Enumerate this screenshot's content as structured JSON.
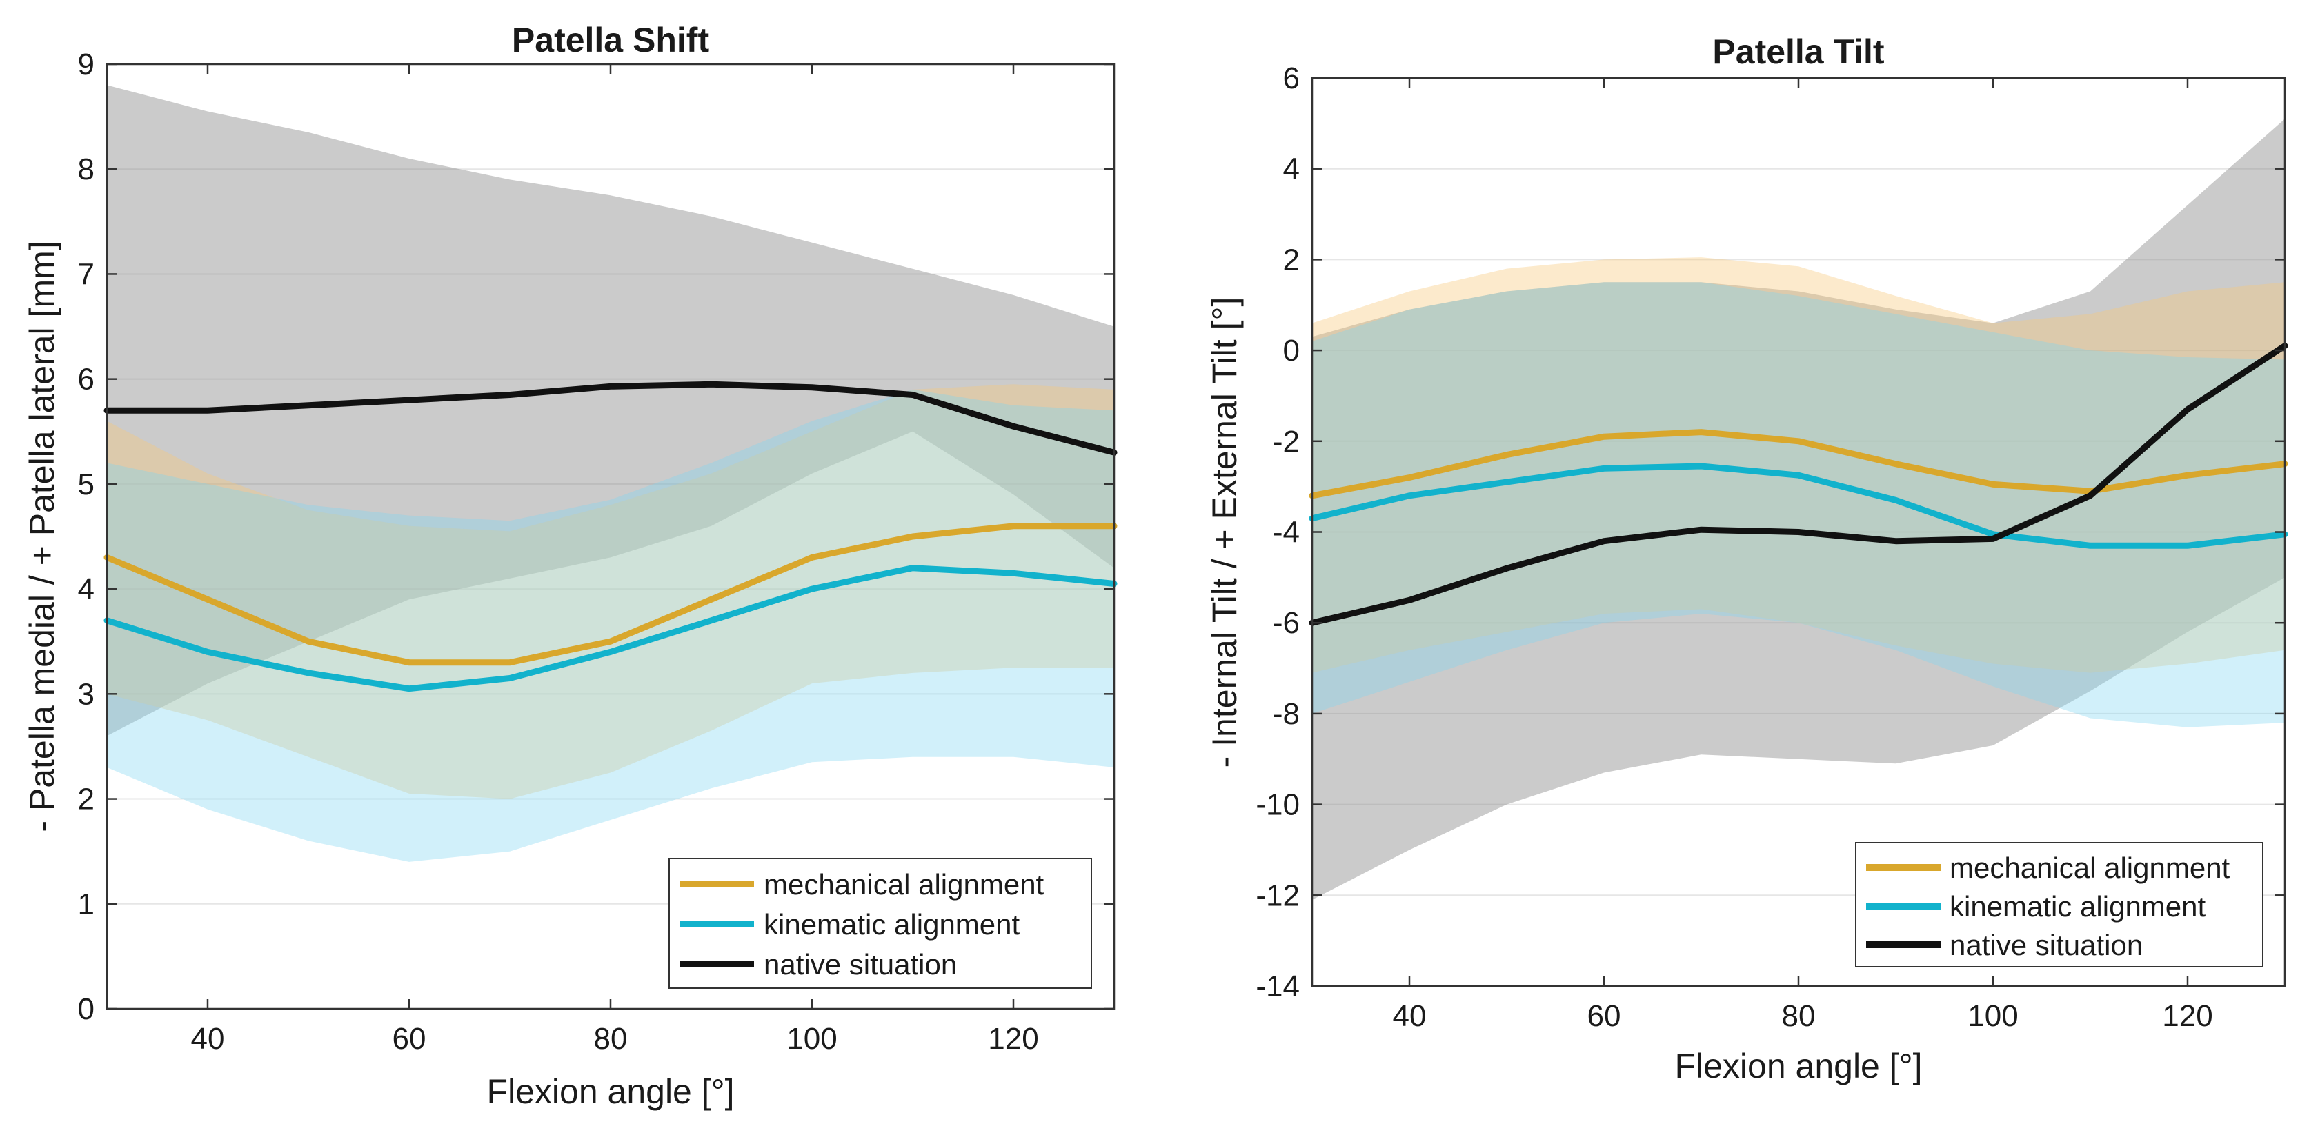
{
  "colors": {
    "mechanical": "#D9A72C",
    "mechanical_band": "#F6C87A",
    "kinematic": "#12B2CC",
    "kinematic_band": "#7FD6F0",
    "native": "#111111",
    "native_band": "#8C8C8C",
    "grid": "#E6E6E6",
    "axis": "#333333"
  },
  "legend": {
    "mechanical": "mechanical alignment",
    "kinematic": "kinematic alignment",
    "native": "native situation"
  },
  "chart_data": [
    {
      "type": "line",
      "title": "Patella Shift",
      "xlabel": "Flexion angle  [°]",
      "ylabel": "- Patella medial / + Patella lateral [mm]",
      "xlim": [
        30,
        130
      ],
      "ylim": [
        0,
        9
      ],
      "xticks": [
        40,
        60,
        80,
        100,
        120
      ],
      "yticks": [
        0,
        1,
        2,
        3,
        4,
        5,
        6,
        7,
        8,
        9
      ],
      "grid": true,
      "legend_position": "bottom-right",
      "x": [
        30,
        40,
        50,
        60,
        70,
        80,
        90,
        100,
        110,
        120,
        130
      ],
      "series": [
        {
          "key": "native",
          "name": "native situation",
          "mean": [
            5.7,
            5.7,
            5.75,
            5.8,
            5.85,
            5.93,
            5.95,
            5.92,
            5.85,
            5.55,
            5.3
          ],
          "upper": [
            8.8,
            8.55,
            8.35,
            8.1,
            7.9,
            7.75,
            7.55,
            7.3,
            7.05,
            6.8,
            6.5
          ],
          "lower": [
            2.6,
            3.1,
            3.5,
            3.9,
            4.1,
            4.3,
            4.6,
            5.1,
            5.5,
            4.9,
            4.2
          ]
        },
        {
          "key": "mechanical",
          "name": "mechanical alignment",
          "mean": [
            4.3,
            3.9,
            3.5,
            3.3,
            3.3,
            3.5,
            3.9,
            4.3,
            4.5,
            4.6,
            4.6
          ],
          "upper": [
            5.6,
            5.1,
            4.75,
            4.6,
            4.55,
            4.8,
            5.1,
            5.5,
            5.9,
            5.95,
            5.9
          ],
          "lower": [
            3.0,
            2.75,
            2.4,
            2.05,
            2.0,
            2.25,
            2.65,
            3.1,
            3.2,
            3.25,
            3.25
          ]
        },
        {
          "key": "kinematic",
          "name": "kinematic alignment",
          "mean": [
            3.7,
            3.4,
            3.2,
            3.05,
            3.15,
            3.4,
            3.7,
            4.0,
            4.2,
            4.15,
            4.05
          ],
          "upper": [
            5.2,
            5.0,
            4.8,
            4.7,
            4.65,
            4.85,
            5.2,
            5.6,
            5.9,
            5.75,
            5.7
          ],
          "lower": [
            2.3,
            1.9,
            1.6,
            1.4,
            1.5,
            1.8,
            2.1,
            2.35,
            2.4,
            2.4,
            2.3
          ]
        }
      ]
    },
    {
      "type": "line",
      "title": "Patella Tilt",
      "xlabel": "Flexion angle  [°]",
      "ylabel": "- Internal Tilt / + External Tilt [°]",
      "xlim": [
        30,
        130
      ],
      "ylim": [
        -14,
        6
      ],
      "xticks": [
        40,
        60,
        80,
        100,
        120
      ],
      "yticks": [
        -14,
        -12,
        -10,
        -8,
        -6,
        -4,
        -2,
        0,
        2,
        4,
        6
      ],
      "grid": true,
      "legend_position": "bottom-right",
      "x": [
        30,
        40,
        50,
        60,
        70,
        80,
        90,
        100,
        110,
        120,
        130
      ],
      "series": [
        {
          "key": "native",
          "name": "native situation",
          "mean": [
            -6.0,
            -5.5,
            -4.8,
            -4.2,
            -3.95,
            -4.0,
            -4.2,
            -4.15,
            -3.2,
            -1.3,
            0.1
          ],
          "upper": [
            0.3,
            0.9,
            1.3,
            1.5,
            1.5,
            1.3,
            0.9,
            0.6,
            1.3,
            3.2,
            5.1
          ],
          "lower": [
            -12.1,
            -11.0,
            -10.0,
            -9.3,
            -8.9,
            -9.0,
            -9.1,
            -8.7,
            -7.5,
            -6.2,
            -5.0
          ]
        },
        {
          "key": "mechanical",
          "name": "mechanical alignment",
          "mean": [
            -3.2,
            -2.8,
            -2.3,
            -1.9,
            -1.8,
            -2.0,
            -2.5,
            -2.95,
            -3.1,
            -2.75,
            -2.5
          ],
          "upper": [
            0.6,
            1.3,
            1.8,
            2.0,
            2.05,
            1.85,
            1.2,
            0.6,
            0.8,
            1.3,
            1.5
          ],
          "lower": [
            -7.1,
            -6.6,
            -6.2,
            -5.8,
            -5.7,
            -6.0,
            -6.5,
            -6.9,
            -7.1,
            -6.9,
            -6.6
          ]
        },
        {
          "key": "kinematic",
          "name": "kinematic alignment",
          "mean": [
            -3.7,
            -3.2,
            -2.9,
            -2.6,
            -2.55,
            -2.75,
            -3.3,
            -4.05,
            -4.3,
            -4.3,
            -4.05
          ],
          "upper": [
            0.2,
            0.9,
            1.3,
            1.5,
            1.5,
            1.2,
            0.8,
            0.4,
            0.0,
            -0.15,
            -0.2
          ],
          "lower": [
            -8.0,
            -7.3,
            -6.6,
            -6.0,
            -5.8,
            -6.0,
            -6.6,
            -7.4,
            -8.1,
            -8.3,
            -8.2
          ]
        }
      ]
    }
  ]
}
